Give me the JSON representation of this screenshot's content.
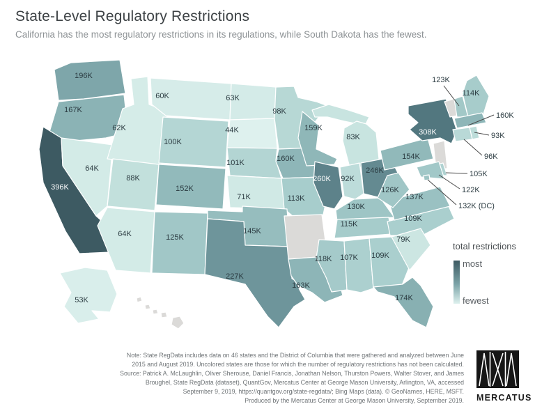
{
  "title": "State-Level Regulatory Restrictions",
  "subtitle": "California has the most regulatory restrictions in its regulations, while South Dakota has the fewest.",
  "legend": {
    "title": "total restrictions",
    "max_label": "most",
    "min_label": "fewest"
  },
  "colors": {
    "no_data_fill": "#dbdad8",
    "state_border": "#ffffff",
    "label_dark": "#2b3b41",
    "label_light": "#ffffff",
    "callout_line": "#4a4a4a",
    "scale_anchors": [
      [
        44,
        "#def1ee"
      ],
      [
        80,
        "#cbe6e2"
      ],
      [
        110,
        "#a9cecd"
      ],
      [
        150,
        "#93bbbc"
      ],
      [
        200,
        "#7ca4a8"
      ],
      [
        260,
        "#5d828a"
      ],
      [
        320,
        "#4f747c"
      ],
      [
        396,
        "#3d5a62"
      ]
    ],
    "white_label_threshold": 250
  },
  "note_lines": [
    "Note: State RegData includes data on 46 states and the District of Columbia that were gathered and analyzed between June",
    "2015 and August 2019. Uncolored states are those for which the number of regulatory restrictions has not been calculated.",
    "Source: Patrick A. McLaughlin, Oliver Sherouse, Daniel Francis, Jonathan Nelson, Thurston Powers, Walter Stover, and James",
    "Broughel, State RegData (dataset), QuantGov, Mercatus Center at George Mason University, Arlington, VA, accessed",
    "September 9, 2019, https://quantgov.org/state-regdata/; Bing Maps (data). © GeoNames, HERE, MSFT.",
    "Produced by the Mercatus Center at George Mason University, September 2019."
  ],
  "logo": {
    "text": "MERCATUS"
  },
  "chart_data": {
    "type": "choropleth_map",
    "region": "United States",
    "series_label": "total restrictions",
    "unit": "regulatory restrictions, K = thousands",
    "min": {
      "state": "SD",
      "label": "44K"
    },
    "max": {
      "state": "CA",
      "label": "396K"
    },
    "uncolored_states": [
      "AR",
      "NJ",
      "VT",
      "HI"
    ],
    "states": [
      {
        "id": "WA",
        "name": "Washington",
        "value": 196,
        "label": "196K"
      },
      {
        "id": "OR",
        "name": "Oregon",
        "value": 167,
        "label": "167K"
      },
      {
        "id": "CA",
        "name": "California",
        "value": 396,
        "label": "396K"
      },
      {
        "id": "NV",
        "name": "Nevada",
        "value": 64,
        "label": "64K"
      },
      {
        "id": "ID",
        "name": "Idaho",
        "value": 62,
        "label": "62K"
      },
      {
        "id": "MT",
        "name": "Montana",
        "value": 60,
        "label": "60K"
      },
      {
        "id": "WY",
        "name": "Wyoming",
        "value": 100,
        "label": "100K"
      },
      {
        "id": "UT",
        "name": "Utah",
        "value": 88,
        "label": "88K"
      },
      {
        "id": "CO",
        "name": "Colorado",
        "value": 152,
        "label": "152K"
      },
      {
        "id": "AZ",
        "name": "Arizona",
        "value": 64,
        "label": "64K"
      },
      {
        "id": "NM",
        "name": "New Mexico",
        "value": 125,
        "label": "125K"
      },
      {
        "id": "ND",
        "name": "North Dakota",
        "value": 63,
        "label": "63K"
      },
      {
        "id": "SD",
        "name": "South Dakota",
        "value": 44,
        "label": "44K"
      },
      {
        "id": "NE",
        "name": "Nebraska",
        "value": 101,
        "label": "101K"
      },
      {
        "id": "KS",
        "name": "Kansas",
        "value": 71,
        "label": "71K"
      },
      {
        "id": "MN",
        "name": "Minnesota",
        "value": 98,
        "label": "98K"
      },
      {
        "id": "IA",
        "name": "Iowa",
        "value": 160,
        "label": "160K"
      },
      {
        "id": "MO",
        "name": "Missouri",
        "value": 113,
        "label": "113K"
      },
      {
        "id": "OK",
        "name": "Oklahoma",
        "value": 145,
        "label": "145K"
      },
      {
        "id": "TX",
        "name": "Texas",
        "value": 227,
        "label": "227K"
      },
      {
        "id": "AR",
        "name": "Arkansas",
        "value": null,
        "label": ""
      },
      {
        "id": "LA",
        "name": "Louisiana",
        "value": 163,
        "label": "163K"
      },
      {
        "id": "WI",
        "name": "Wisconsin",
        "value": 159,
        "label": "159K"
      },
      {
        "id": "IL",
        "name": "Illinois",
        "value": 260,
        "label": "260K"
      },
      {
        "id": "MI",
        "name": "Michigan",
        "value": 83,
        "label": "83K"
      },
      {
        "id": "IN",
        "name": "Indiana",
        "value": 92,
        "label": "92K"
      },
      {
        "id": "OH",
        "name": "Ohio",
        "value": 246,
        "label": "246K"
      },
      {
        "id": "KY",
        "name": "Kentucky",
        "value": 130,
        "label": "130K"
      },
      {
        "id": "TN",
        "name": "Tennessee",
        "value": 115,
        "label": "115K"
      },
      {
        "id": "MS",
        "name": "Mississippi",
        "value": 118,
        "label": "118K"
      },
      {
        "id": "AL",
        "name": "Alabama",
        "value": 107,
        "label": "107K"
      },
      {
        "id": "GA",
        "name": "Georgia",
        "value": 109,
        "label": "109K"
      },
      {
        "id": "FL",
        "name": "Florida",
        "value": 174,
        "label": "174K"
      },
      {
        "id": "NC",
        "name": "North Carolina",
        "value": 109,
        "label": "109K"
      },
      {
        "id": "SC",
        "name": "South Carolina",
        "value": 79,
        "label": "79K"
      },
      {
        "id": "VA",
        "name": "Virginia",
        "value": 137,
        "label": "137K"
      },
      {
        "id": "WV",
        "name": "West Virginia",
        "value": 126,
        "label": "126K"
      },
      {
        "id": "PA",
        "name": "Pennsylvania",
        "value": 154,
        "label": "154K"
      },
      {
        "id": "NY",
        "name": "New York",
        "value": 308,
        "label": "308K"
      },
      {
        "id": "NJ",
        "name": "New Jersey",
        "value": null,
        "label": ""
      },
      {
        "id": "VT",
        "name": "Vermont",
        "value": null,
        "label": ""
      },
      {
        "id": "NH",
        "name": "New Hampshire",
        "value": 123,
        "label": "123K",
        "callout": true
      },
      {
        "id": "ME",
        "name": "Maine",
        "value": 114,
        "label": "114K"
      },
      {
        "id": "MA",
        "name": "Massachusetts",
        "value": 160,
        "label": "160K",
        "callout": true
      },
      {
        "id": "RI",
        "name": "Rhode Island",
        "value": 93,
        "label": "93K",
        "callout": true
      },
      {
        "id": "CT",
        "name": "Connecticut",
        "value": 96,
        "label": "96K",
        "callout": true
      },
      {
        "id": "DE",
        "name": "Delaware",
        "value": 105,
        "label": "105K",
        "callout": true
      },
      {
        "id": "MD",
        "name": "Maryland",
        "value": 122,
        "label": "122K",
        "callout": true
      },
      {
        "id": "DC",
        "name": "District of Columbia",
        "value": 132,
        "label": "132K (DC)",
        "callout": true
      },
      {
        "id": "AK",
        "name": "Alaska",
        "value": 53,
        "label": "53K"
      },
      {
        "id": "HI",
        "name": "Hawaii",
        "value": null,
        "label": ""
      }
    ]
  }
}
